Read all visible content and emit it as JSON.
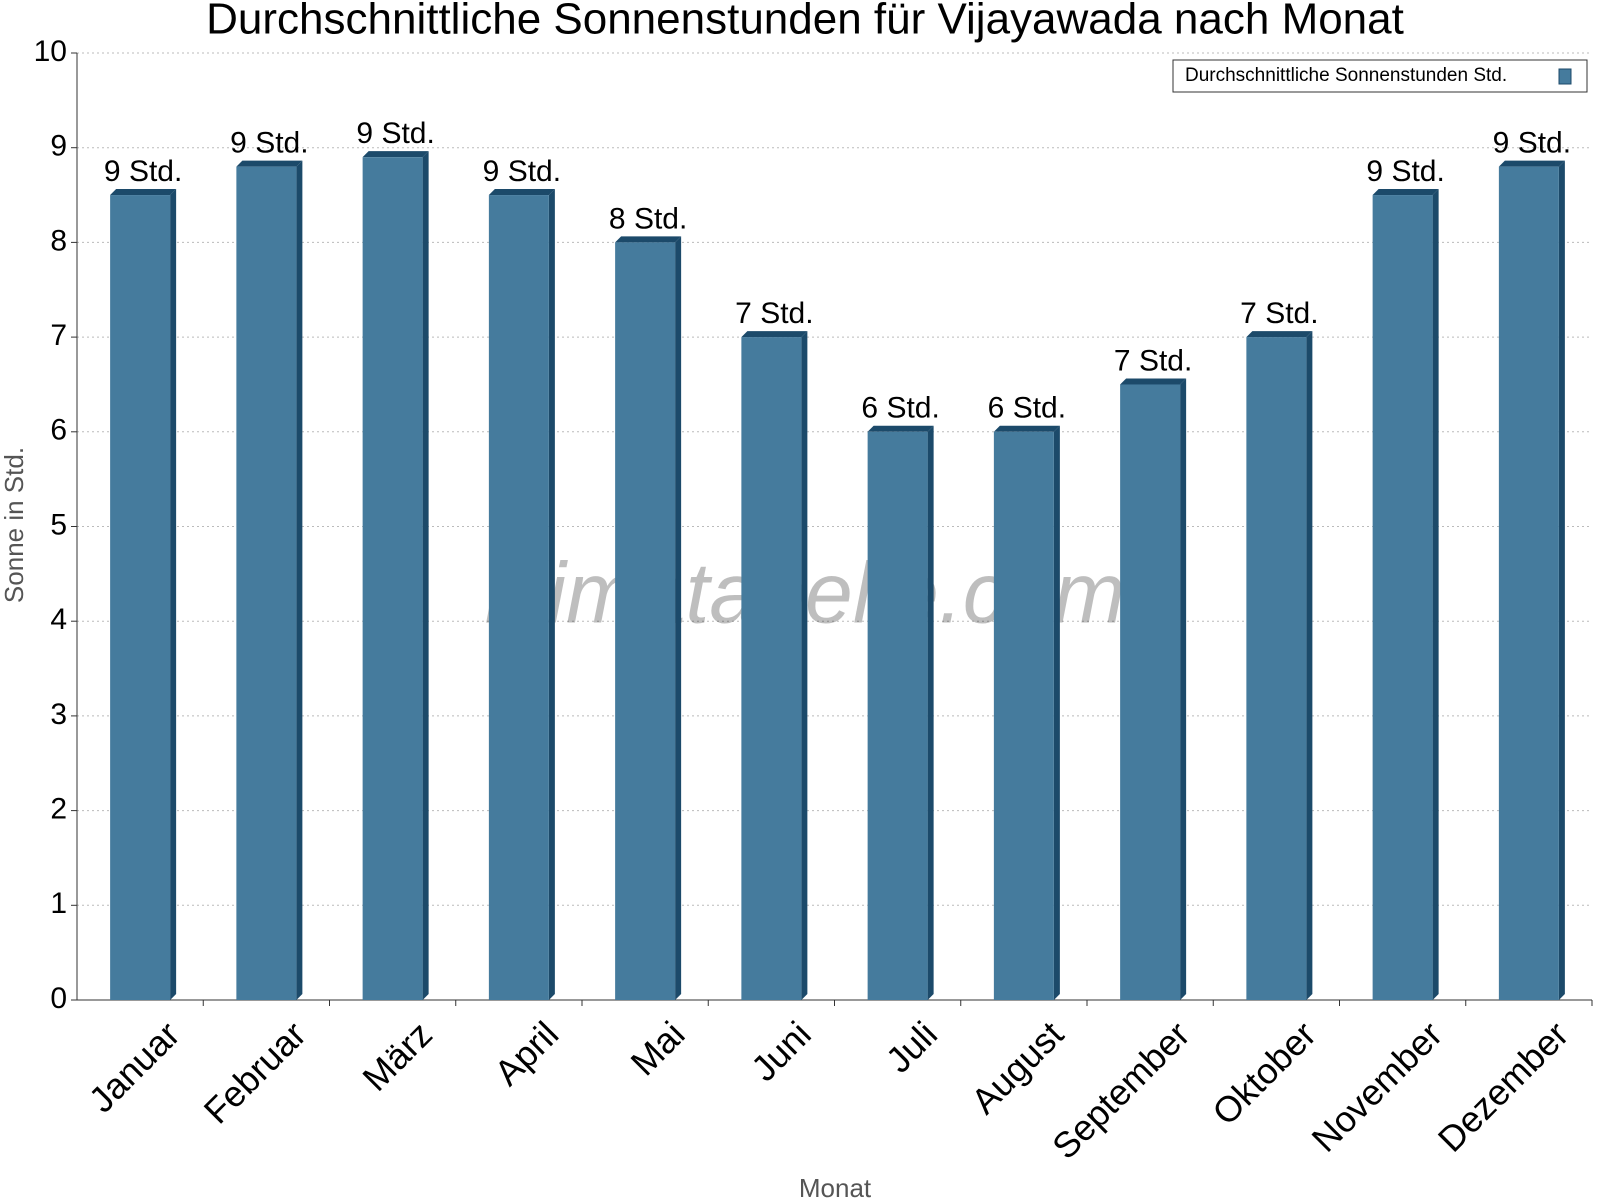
{
  "chart_data": {
    "type": "bar",
    "title": "Durchschnittliche Sonnenstunden für Vijayawada nach Monat",
    "x_label": "Monat",
    "y_label": "Sonne in Std.",
    "watermark": "klimatabelle.com",
    "categories": [
      "Januar",
      "Februar",
      "März",
      "April",
      "Mai",
      "Juni",
      "Juli",
      "August",
      "September",
      "Oktober",
      "November",
      "Dezember"
    ],
    "series": [
      {
        "name": "Durchschnittliche Sonnenstunden Std.",
        "color": "#457b9d",
        "values": [
          8.5,
          8.8,
          8.9,
          8.5,
          8.0,
          7.0,
          6.0,
          6.0,
          6.5,
          7.0,
          8.5,
          8.8
        ],
        "value_labels": [
          "9 Std.",
          "9 Std.",
          "9 Std.",
          "9 Std.",
          "8 Std.",
          "7 Std.",
          "6 Std.",
          "6 Std.",
          "7 Std.",
          "7 Std.",
          "9 Std.",
          "9 Std."
        ]
      }
    ],
    "ylim": [
      0,
      10
    ],
    "yticks": [
      0,
      1,
      2,
      3,
      4,
      5,
      6,
      7,
      8,
      9,
      10
    ],
    "grid": true,
    "legend": "top-right"
  }
}
